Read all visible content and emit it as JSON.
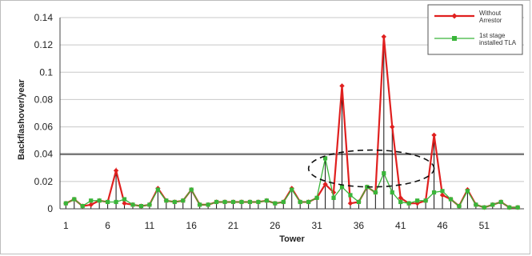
{
  "chart_data": {
    "type": "line",
    "xlabel": "Tower",
    "ylabel": "Backflashover/year",
    "xlim": [
      1,
      55
    ],
    "ylim": [
      0,
      0.14
    ],
    "x_ticks": [
      1,
      6,
      11,
      16,
      21,
      26,
      31,
      36,
      41,
      46,
      51
    ],
    "y_ticks": [
      0,
      0.02,
      0.04,
      0.06,
      0.08,
      0.1,
      0.12,
      0.14
    ],
    "y_tick_labels": [
      "0",
      "0.02",
      "0.04",
      "0.06",
      "0.08",
      "0.1",
      "0.12",
      "0.14"
    ],
    "grid": "horizontal",
    "threshold": 0.04,
    "highlight_ellipse_x_range": [
      30,
      45
    ],
    "highlight_ellipse_y_range": [
      0.016,
      0.043
    ],
    "legend_placement": "top-right",
    "x": [
      1,
      2,
      3,
      4,
      5,
      6,
      7,
      8,
      9,
      10,
      11,
      12,
      13,
      14,
      15,
      16,
      17,
      18,
      19,
      20,
      21,
      22,
      23,
      24,
      25,
      26,
      27,
      28,
      29,
      30,
      31,
      32,
      33,
      34,
      35,
      36,
      37,
      38,
      39,
      40,
      41,
      42,
      43,
      44,
      45,
      46,
      47,
      48,
      49,
      50,
      51,
      52,
      53,
      54,
      55
    ],
    "series": [
      {
        "name": "Without Arrestor",
        "color": "#e0201f",
        "marker": "diamond",
        "values": [
          0.004,
          0.007,
          0.002,
          0.003,
          0.006,
          0.005,
          0.028,
          0.004,
          0.003,
          0.002,
          0.003,
          0.015,
          0.006,
          0.005,
          0.006,
          0.014,
          0.003,
          0.003,
          0.005,
          0.005,
          0.005,
          0.005,
          0.005,
          0.005,
          0.006,
          0.004,
          0.005,
          0.015,
          0.005,
          0.005,
          0.008,
          0.018,
          0.012,
          0.09,
          0.004,
          0.005,
          0.016,
          0.012,
          0.126,
          0.06,
          0.008,
          0.004,
          0.004,
          0.006,
          0.054,
          0.01,
          0.007,
          0.002,
          0.014,
          0.003,
          0.001,
          0.003,
          0.005,
          0.001,
          0.001
        ]
      },
      {
        "name": "1st stage installed TLA",
        "color": "#3ab53a",
        "marker": "square",
        "values": [
          0.004,
          0.007,
          0.002,
          0.006,
          0.006,
          0.005,
          0.005,
          0.007,
          0.003,
          0.002,
          0.003,
          0.014,
          0.006,
          0.005,
          0.006,
          0.014,
          0.003,
          0.003,
          0.005,
          0.005,
          0.005,
          0.005,
          0.005,
          0.005,
          0.006,
          0.004,
          0.005,
          0.014,
          0.005,
          0.005,
          0.008,
          0.037,
          0.008,
          0.016,
          0.01,
          0.005,
          0.016,
          0.012,
          0.026,
          0.012,
          0.005,
          0.004,
          0.006,
          0.006,
          0.012,
          0.013,
          0.007,
          0.002,
          0.013,
          0.003,
          0.001,
          0.003,
          0.005,
          0.001,
          0.001
        ]
      }
    ]
  }
}
